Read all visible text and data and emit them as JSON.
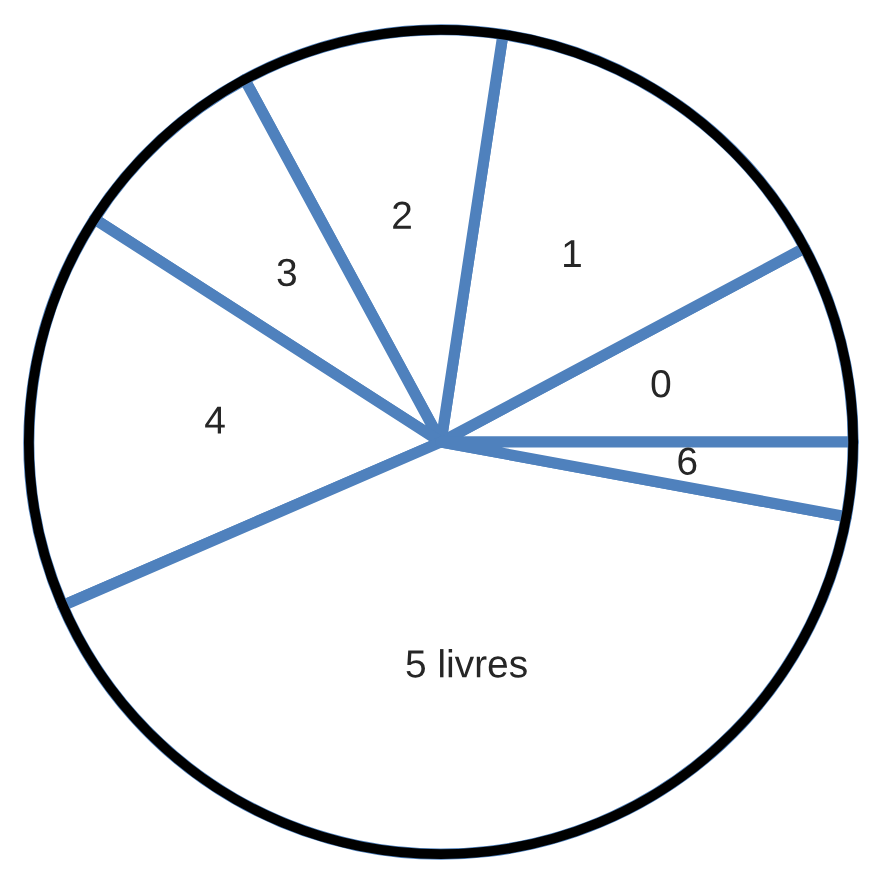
{
  "chart_data": {
    "type": "pie",
    "categories": [
      "0",
      "1",
      "2",
      "3",
      "4",
      "5 livres",
      "6"
    ],
    "values": [
      7.8,
      14.8,
      10.3,
      8.0,
      15.6,
      40.6,
      2.9
    ],
    "colors": [
      "#ffffff",
      "#ffffff",
      "#ffffff",
      "#ffffff",
      "#ffffff",
      "#ffffff",
      "#ffffff"
    ],
    "legend": false
  }
}
